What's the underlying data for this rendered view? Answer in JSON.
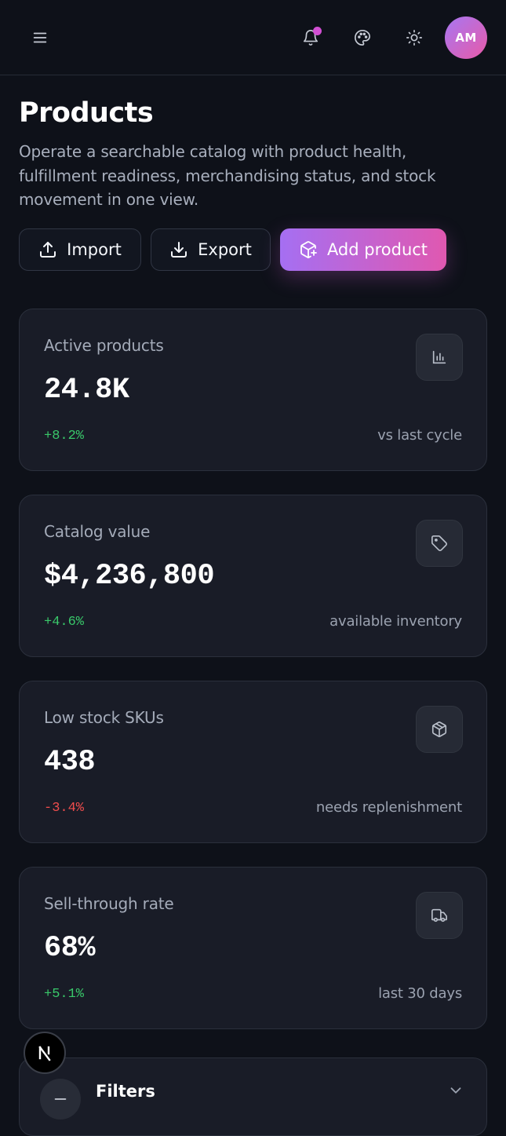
{
  "header": {
    "avatar_initials": "AM"
  },
  "page": {
    "title": "Products",
    "description": "Operate a searchable catalog with product health, fulfillment readiness, merchandising status, and stock movement in one view."
  },
  "actions": {
    "import_label": "Import",
    "export_label": "Export",
    "add_label": "Add product"
  },
  "stats": [
    {
      "label": "Active products",
      "value": "24.8K",
      "change": "+8.2%",
      "trend": "up",
      "note": "vs last cycle",
      "icon": "bar-chart-icon"
    },
    {
      "label": "Catalog value",
      "value": "$4,236,800",
      "change": "+4.6%",
      "trend": "up",
      "note": "available inventory",
      "icon": "tag-icon"
    },
    {
      "label": "Low stock SKUs",
      "value": "438",
      "change": "-3.4%",
      "trend": "down",
      "note": "needs replenishment",
      "icon": "package-icon"
    },
    {
      "label": "Sell-through rate",
      "value": "68%",
      "change": "+5.1%",
      "trend": "up",
      "note": "last 30 days",
      "icon": "truck-icon"
    }
  ],
  "filters": {
    "title": "Filters"
  },
  "colors": {
    "background": "#0e1119",
    "card": "#191c27",
    "accent_start": "#a56ff2",
    "accent_end": "#e058b0",
    "positive": "#39c86a",
    "negative": "#ef4d4d",
    "notification_dot": "#d14fd3"
  }
}
